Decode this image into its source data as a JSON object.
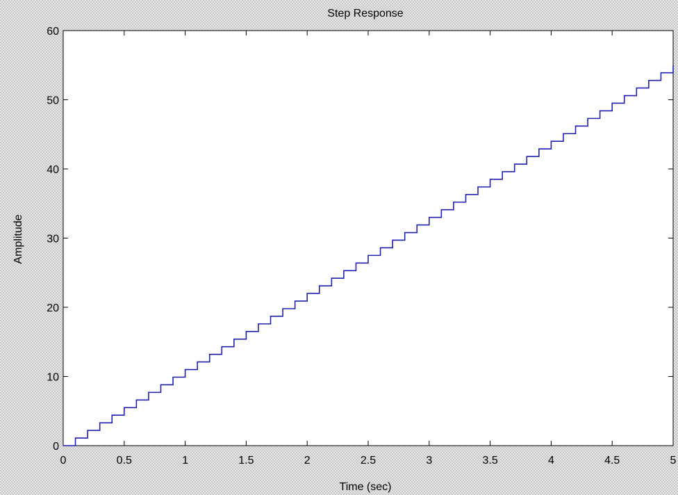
{
  "chart_data": {
    "type": "line",
    "step": true,
    "title": "Step Response",
    "xlabel": "Time (sec)",
    "ylabel": "Amplitude",
    "xlim": [
      0,
      5
    ],
    "ylim": [
      0,
      60
    ],
    "xticks": [
      "0",
      "0.5",
      "1",
      "1.5",
      "2",
      "2.5",
      "3",
      "3.5",
      "4",
      "4.5",
      "5"
    ],
    "yticks": [
      "0",
      "10",
      "20",
      "30",
      "40",
      "50",
      "60"
    ],
    "grid": false,
    "colors": {
      "series": "#1f1fb4",
      "axes": "#000000",
      "plot_bg": "#ffffff"
    },
    "series": [
      {
        "sample_time": 0.1,
        "x": [
          0,
          0.1,
          0.2,
          0.3,
          0.4,
          0.5,
          0.6,
          0.7,
          0.8,
          0.9,
          1.0,
          1.1,
          1.2,
          1.3,
          1.4,
          1.5,
          1.6,
          1.7,
          1.8,
          1.9,
          2.0,
          2.1,
          2.2,
          2.3,
          2.4,
          2.5,
          2.6,
          2.7,
          2.8,
          2.9,
          3.0,
          3.1,
          3.2,
          3.3,
          3.4,
          3.5,
          3.6,
          3.7,
          3.8,
          3.9,
          4.0,
          4.1,
          4.2,
          4.3,
          4.4,
          4.5,
          4.6,
          4.7,
          4.8,
          4.9,
          5.0
        ],
        "values": [
          0,
          1.1,
          2.2,
          3.3,
          4.4,
          5.5,
          6.6,
          7.7,
          8.8,
          9.9,
          11.0,
          12.1,
          13.2,
          14.3,
          15.4,
          16.5,
          17.6,
          18.7,
          19.8,
          20.9,
          22.0,
          23.1,
          24.2,
          25.3,
          26.4,
          27.5,
          28.6,
          29.7,
          30.8,
          31.9,
          33.0,
          34.1,
          35.2,
          36.3,
          37.4,
          38.5,
          39.6,
          40.7,
          41.8,
          42.9,
          44.0,
          45.1,
          46.2,
          47.3,
          48.4,
          49.5,
          50.6,
          51.7,
          52.8,
          53.9,
          55.0
        ]
      }
    ]
  }
}
